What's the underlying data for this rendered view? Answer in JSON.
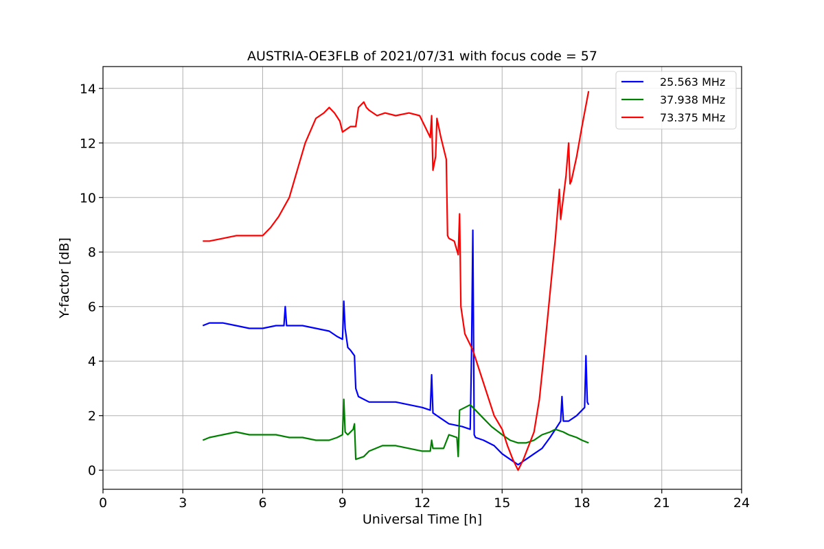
{
  "chart_data": {
    "type": "line",
    "title": "AUSTRIA-OE3FLB of 2021/07/31 with focus code = 57",
    "xlabel": "Universal Time [h]",
    "ylabel": "Y-factor [dB]",
    "xlim": [
      0,
      24
    ],
    "ylim": [
      -0.7,
      14.8
    ],
    "xticks": [
      0,
      3,
      6,
      9,
      12,
      15,
      18,
      21,
      24
    ],
    "yticks": [
      0,
      2,
      4,
      6,
      8,
      10,
      12,
      14
    ],
    "grid": true,
    "legend_position": "top-right",
    "series": [
      {
        "name": "25.563 MHz",
        "color": "#0000ff",
        "x": [
          3.75,
          4.0,
          4.5,
          5.0,
          5.5,
          6.0,
          6.5,
          6.8,
          6.85,
          6.9,
          7.5,
          8.0,
          8.5,
          8.8,
          9.0,
          9.05,
          9.1,
          9.2,
          9.3,
          9.45,
          9.5,
          9.6,
          10.0,
          10.5,
          11.0,
          11.5,
          12.0,
          12.3,
          12.35,
          12.4,
          12.7,
          13.0,
          13.5,
          13.8,
          13.85,
          13.9,
          13.95,
          14.0,
          14.3,
          14.7,
          15.0,
          15.3,
          15.6,
          15.9,
          16.2,
          16.5,
          16.8,
          17.0,
          17.2,
          17.25,
          17.3,
          17.5,
          17.8,
          18.1,
          18.15,
          18.2,
          18.25
        ],
        "y": [
          5.3,
          5.4,
          5.4,
          5.3,
          5.2,
          5.2,
          5.3,
          5.3,
          6.0,
          5.3,
          5.3,
          5.2,
          5.1,
          4.9,
          4.8,
          6.2,
          5.2,
          4.5,
          4.4,
          4.2,
          3.0,
          2.7,
          2.5,
          2.5,
          2.5,
          2.4,
          2.3,
          2.2,
          3.5,
          2.1,
          1.9,
          1.7,
          1.6,
          1.5,
          4.3,
          8.8,
          1.3,
          1.2,
          1.1,
          0.9,
          0.6,
          0.4,
          0.2,
          0.4,
          0.6,
          0.8,
          1.2,
          1.5,
          1.8,
          2.7,
          1.8,
          1.8,
          2.0,
          2.3,
          4.2,
          2.5,
          2.4
        ]
      },
      {
        "name": "37.938 MHz",
        "color": "#008000",
        "x": [
          3.75,
          4.0,
          4.5,
          5.0,
          5.5,
          6.0,
          6.5,
          7.0,
          7.5,
          8.0,
          8.5,
          8.8,
          9.0,
          9.05,
          9.1,
          9.2,
          9.4,
          9.45,
          9.5,
          9.8,
          10.0,
          10.5,
          11.0,
          11.5,
          12.0,
          12.3,
          12.35,
          12.4,
          12.8,
          13.0,
          13.3,
          13.35,
          13.4,
          13.6,
          13.8,
          14.0,
          14.3,
          14.6,
          15.0,
          15.3,
          15.6,
          15.9,
          16.2,
          16.5,
          16.8,
          17.0,
          17.3,
          17.5,
          17.8,
          18.0,
          18.25
        ],
        "y": [
          1.1,
          1.2,
          1.3,
          1.4,
          1.3,
          1.3,
          1.3,
          1.2,
          1.2,
          1.1,
          1.1,
          1.2,
          1.3,
          2.6,
          1.4,
          1.3,
          1.5,
          1.7,
          0.4,
          0.5,
          0.7,
          0.9,
          0.9,
          0.8,
          0.7,
          0.7,
          1.1,
          0.8,
          0.8,
          1.3,
          1.2,
          0.5,
          2.2,
          2.3,
          2.4,
          2.2,
          1.9,
          1.6,
          1.3,
          1.1,
          1.0,
          1.0,
          1.1,
          1.3,
          1.4,
          1.5,
          1.4,
          1.3,
          1.2,
          1.1,
          1.0
        ]
      },
      {
        "name": "73.375 MHz",
        "color": "#ff0000",
        "x": [
          3.75,
          4.0,
          4.5,
          5.0,
          5.5,
          6.0,
          6.3,
          6.6,
          7.0,
          7.3,
          7.6,
          8.0,
          8.3,
          8.5,
          8.7,
          8.9,
          9.0,
          9.3,
          9.5,
          9.6,
          9.8,
          9.9,
          10.0,
          10.3,
          10.6,
          11.0,
          11.5,
          11.9,
          12.1,
          12.3,
          12.35,
          12.4,
          12.5,
          12.55,
          12.7,
          12.9,
          12.95,
          13.0,
          13.2,
          13.35,
          13.4,
          13.45,
          13.6,
          13.9,
          14.3,
          14.7,
          15.0,
          15.2,
          15.4,
          15.6,
          15.8,
          16.0,
          16.2,
          16.4,
          16.6,
          16.8,
          17.0,
          17.15,
          17.2,
          17.4,
          17.5,
          17.55,
          17.6,
          17.8,
          18.0,
          18.25
        ],
        "y": [
          8.4,
          8.4,
          8.5,
          8.6,
          8.6,
          8.6,
          8.9,
          9.3,
          10.0,
          11.0,
          12.0,
          12.9,
          13.1,
          13.3,
          13.1,
          12.8,
          12.4,
          12.6,
          12.6,
          13.3,
          13.5,
          13.3,
          13.2,
          13.0,
          13.1,
          13.0,
          13.1,
          13.0,
          12.6,
          12.2,
          13.0,
          11.0,
          11.5,
          12.9,
          12.2,
          11.4,
          8.6,
          8.5,
          8.4,
          7.9,
          9.4,
          6.0,
          5.0,
          4.4,
          3.2,
          2.0,
          1.5,
          0.9,
          0.4,
          0.0,
          0.4,
          0.9,
          1.4,
          2.6,
          4.5,
          6.5,
          8.5,
          10.3,
          9.2,
          10.8,
          12.0,
          10.5,
          10.6,
          11.5,
          12.6,
          13.9
        ]
      }
    ]
  }
}
